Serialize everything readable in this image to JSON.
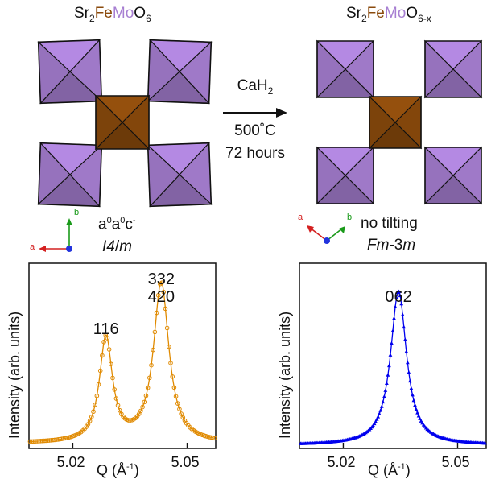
{
  "left_structure": {
    "formula": {
      "sr": "Sr",
      "sr_sub": "2",
      "fe": "Fe",
      "mo": "Mo",
      "o": "O",
      "o_sub": "6"
    },
    "tilt": {
      "base": "a",
      "s1": "0",
      "a2": "a",
      "s2": "0",
      "c": "c",
      "s3": "-"
    },
    "space_group": {
      "italic1": "I4",
      "slash": "/",
      "italic2": "m"
    },
    "axes": {
      "a": "a",
      "b": "b"
    }
  },
  "right_structure": {
    "formula": {
      "sr": "Sr",
      "sr_sub": "2",
      "fe": "Fe",
      "mo": "Mo",
      "o": "O",
      "o_sub": "6-x"
    },
    "tilt": "no tilting",
    "space_group": {
      "italic1": "Fm",
      "mid": "-3",
      "italic2": "m"
    },
    "axes": {
      "a": "a",
      "b": "b"
    }
  },
  "reaction": {
    "reagent": "CaH",
    "reagent_sub": "2",
    "temp": "500˚C",
    "time": "72 hours"
  },
  "colors": {
    "fe": "#8a4a0c",
    "mo": "#a77fd2",
    "orange": "#e08a00",
    "blue": "#0000ee",
    "axis_red": "#d42020",
    "axis_green": "#1a9a1a",
    "axis_blue": "#2233dd"
  },
  "chart_data": [
    {
      "type": "scatter",
      "color": "#e08a00",
      "marker": "circle",
      "xlabel": "Q (Å-1)",
      "ylabel": "Intensity (arb. units)",
      "x_ticks": [
        "5.02",
        "5.05"
      ],
      "xlim": [
        5.0085,
        5.0575
      ],
      "ylim": [
        0,
        1.12
      ],
      "peaks": [
        {
          "label": "116",
          "x": 5.0287,
          "height": 0.66
        },
        {
          "label_line1": "332",
          "label_line2": "420",
          "x": 5.0432,
          "height": 0.995
        }
      ],
      "baseline": 0.03,
      "annotations": [
        "116",
        "332",
        "420"
      ]
    },
    {
      "type": "scatter",
      "color": "#0000ee",
      "marker": "triangle",
      "xlabel": "Q (Å-1)",
      "ylabel": "Intensity (arb. units)",
      "x_ticks": [
        "5.02",
        "5.05"
      ],
      "xlim": [
        5.0085,
        5.0575
      ],
      "ylim": [
        0,
        1.12
      ],
      "peaks": [
        {
          "label": "062",
          "x": 5.0345,
          "height": 0.95
        }
      ],
      "baseline": 0.02,
      "annotations": [
        "062"
      ]
    }
  ]
}
